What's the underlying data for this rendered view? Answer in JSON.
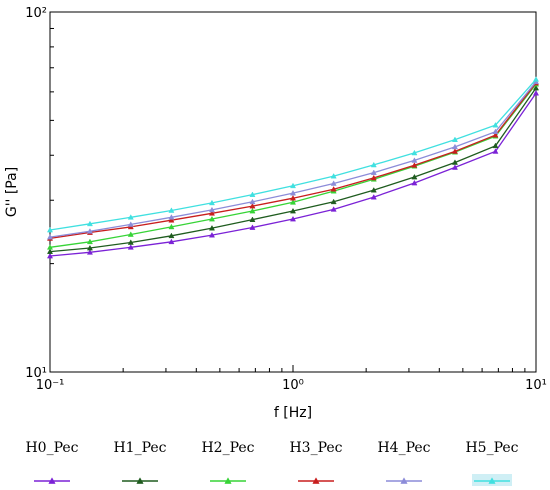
{
  "chart_data": {
    "type": "line",
    "xlabel": "f [Hz]",
    "ylabel": "G'' [Pa]",
    "xscale": "log",
    "yscale": "log",
    "xlim": [
      0.1,
      10
    ],
    "ylim": [
      10,
      100
    ],
    "x_ticks": [
      "10⁻¹",
      "10⁰",
      "10¹"
    ],
    "y_ticks": [
      "10¹",
      "10²"
    ],
    "legend_position": "bottom",
    "grid": false,
    "x": [
      0.1,
      0.146,
      0.215,
      0.316,
      0.464,
      0.681,
      1.0,
      1.47,
      2.15,
      3.16,
      4.64,
      6.81,
      10.0
    ],
    "series": [
      {
        "name": "H0_Pec",
        "color": "#7b22d6",
        "values": [
          21.0,
          21.5,
          22.2,
          23.0,
          24.0,
          25.2,
          26.6,
          28.3,
          30.6,
          33.5,
          37.0,
          41.0,
          59.5
        ]
      },
      {
        "name": "H1_Pec",
        "color": "#1f5c1f",
        "values": [
          21.6,
          22.1,
          22.9,
          23.9,
          25.1,
          26.5,
          28.0,
          29.7,
          32.0,
          34.8,
          38.2,
          42.5,
          61.5
        ]
      },
      {
        "name": "H2_Pec",
        "color": "#37d437",
        "values": [
          22.2,
          23.0,
          24.1,
          25.3,
          26.6,
          28.0,
          29.6,
          31.8,
          34.3,
          37.3,
          40.8,
          45.2,
          63.0
        ]
      },
      {
        "name": "H3_Pec",
        "color": "#c81e1e",
        "values": [
          23.5,
          24.4,
          25.3,
          26.4,
          27.6,
          28.9,
          30.4,
          32.2,
          34.6,
          37.5,
          41.0,
          45.5,
          63.5
        ]
      },
      {
        "name": "H4_Pec",
        "color": "#8c8cd9",
        "values": [
          23.7,
          24.6,
          25.7,
          26.9,
          28.2,
          29.7,
          31.4,
          33.4,
          35.8,
          38.7,
          42.2,
          46.5,
          64.0
        ]
      },
      {
        "name": "H5_Pec",
        "color": "#40e0e0",
        "values": [
          24.8,
          25.8,
          26.9,
          28.1,
          29.5,
          31.1,
          32.9,
          35.0,
          37.6,
          40.6,
          44.2,
          48.5,
          65.0
        ]
      }
    ]
  }
}
